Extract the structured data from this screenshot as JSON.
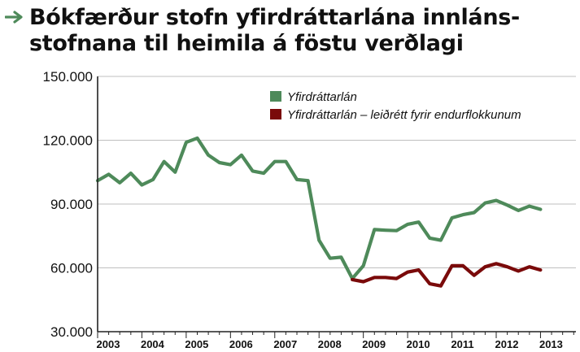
{
  "title": "Bókfærður stofn yfirdráttarlána innláns-stofnana til heimila á föstu verðlagi",
  "title_lines": [
    "Bókfærður stofn yfirdráttarlána innláns-",
    "stofnana til heimila á föstu verðlagi"
  ],
  "title_icon": "right-arrow-icon",
  "colors": {
    "series_green": "#4e8a5a",
    "series_red": "#7a0a0a",
    "arrow": "#4e8a5a",
    "axis": "#222222",
    "grid": "#bfbfbf"
  },
  "chart_data": {
    "type": "line",
    "title": "Bókfærður stofn yfirdráttarlána innláns-stofnana til heimila á föstu verðlagi",
    "xlabel": "",
    "ylabel": "",
    "ylim": [
      30000,
      150000
    ],
    "yticks": [
      30000,
      60000,
      90000,
      120000,
      150000
    ],
    "ytick_labels": [
      "30.000",
      "60.000",
      "90.000",
      "120.000",
      "150.000"
    ],
    "xlim": [
      2003,
      2013.8
    ],
    "xticks": [
      2003,
      2004,
      2005,
      2006,
      2007,
      2008,
      2009,
      2010,
      2011,
      2012,
      2013
    ],
    "xtick_labels": [
      "2003",
      "2004",
      "2005",
      "2006",
      "2007",
      "2008",
      "2009",
      "2010",
      "2011",
      "2012",
      "2013"
    ],
    "grid": "horizontal",
    "legend_position": "top-right",
    "series": [
      {
        "name": "Yfirdráttarlán",
        "color": "#4e8a5a",
        "x": [
          2003.0,
          2003.25,
          2003.5,
          2003.75,
          2004.0,
          2004.25,
          2004.5,
          2004.75,
          2005.0,
          2005.25,
          2005.5,
          2005.75,
          2006.0,
          2006.25,
          2006.5,
          2006.75,
          2007.0,
          2007.25,
          2007.5,
          2007.75,
          2008.0,
          2008.25,
          2008.5,
          2008.75,
          2009.0,
          2009.25,
          2009.5,
          2009.75,
          2010.0,
          2010.25,
          2010.5,
          2010.75,
          2011.0,
          2011.25,
          2011.5,
          2011.75,
          2012.0,
          2012.25,
          2012.5,
          2012.75,
          2013.0,
          2013.25,
          2013.5
        ],
        "values": [
          101000,
          104000,
          100000,
          104500,
          99000,
          101500,
          110000,
          105000,
          119000,
          121000,
          113000,
          109500,
          108500,
          113000,
          105500,
          104500,
          110000,
          110000,
          101500,
          101000,
          73000,
          64500,
          65000,
          55000,
          61000,
          78000,
          77700,
          77500,
          80500,
          81500,
          74000,
          73000,
          83500,
          85000,
          86000,
          90500,
          91700,
          89500,
          87000,
          89000,
          87500,
          null,
          null
        ]
      },
      {
        "name": "Yfirdráttarlán – leiðrétt fyrir endurflokkunum",
        "color": "#7a0a0a",
        "x": [
          2008.75,
          2009.0,
          2009.25,
          2009.5,
          2009.75,
          2010.0,
          2010.25,
          2010.5,
          2010.75,
          2011.0,
          2011.25,
          2011.5,
          2011.75,
          2012.0,
          2012.25,
          2012.5,
          2012.75,
          2013.0,
          2013.25
        ],
        "values": [
          54500,
          53500,
          55500,
          55500,
          55000,
          58000,
          59000,
          52500,
          51500,
          61000,
          61000,
          56500,
          60500,
          62000,
          60500,
          58500,
          60500,
          59000,
          null
        ]
      }
    ],
    "legend": [
      "Yfirdráttarlán",
      "Yfirdráttarlán – leiðrétt fyrir endurflokkunum"
    ]
  }
}
